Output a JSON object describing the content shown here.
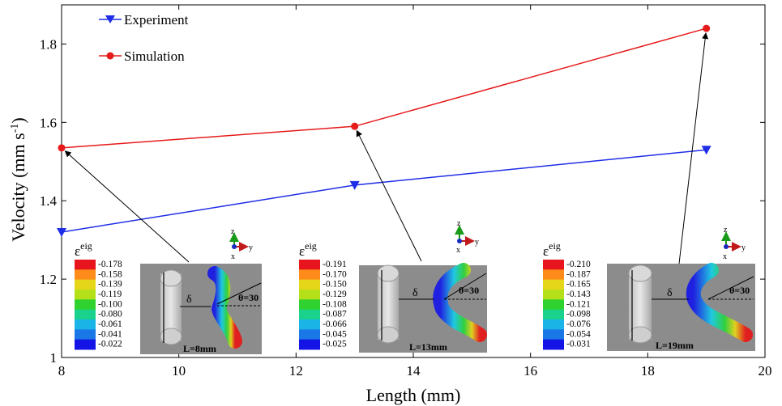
{
  "chart_data": {
    "type": "line",
    "xlabel": "Length (mm)",
    "ylabel": {
      "main": "Velocity (mm s",
      "sup": "-1",
      "close": ")"
    },
    "xlim": [
      8,
      20
    ],
    "ylim": [
      1.0,
      1.9
    ],
    "xticks": [
      "8",
      "10",
      "12",
      "14",
      "16",
      "18",
      "20"
    ],
    "yticks": [
      "1",
      "1.2",
      "1.4",
      "1.6",
      "1.8"
    ],
    "grid": false,
    "legend_position": "top-left",
    "series": [
      {
        "name": "Experiment",
        "color": "#1f2ee6",
        "marker": "triangle-down",
        "x": [
          8,
          13,
          19
        ],
        "y": [
          1.32,
          1.44,
          1.53
        ]
      },
      {
        "name": "Simulation",
        "color": "#e61a1a",
        "marker": "circle",
        "x": [
          8,
          13,
          19
        ],
        "y": [
          1.535,
          1.59,
          1.84
        ]
      }
    ],
    "insets": [
      {
        "epsilon_label": "ε",
        "epsilon_sup": "eig",
        "scale": [
          "-0.178",
          "-0.158",
          "-0.139",
          "-0.119",
          "-0.100",
          "-0.080",
          "-0.061",
          "-0.041",
          "-0.022"
        ],
        "length_label": "L=8mm",
        "delta_label": "δ",
        "theta_label": "θ=30",
        "axis_z": "z",
        "axis_y": "y",
        "axis_x": "x",
        "arrow_to_x": 8
      },
      {
        "epsilon_label": "ε",
        "epsilon_sup": "eig",
        "scale": [
          "-0.191",
          "-0.170",
          "-0.150",
          "-0.129",
          "-0.108",
          "-0.087",
          "-0.066",
          "-0.045",
          "-0.025"
        ],
        "length_label": "L=13mm",
        "delta_label": "δ",
        "theta_label": "θ=30",
        "axis_z": "z",
        "axis_y": "y",
        "axis_x": "x",
        "arrow_to_x": 13
      },
      {
        "epsilon_label": "ε",
        "epsilon_sup": "eig",
        "scale": [
          "-0.210",
          "-0.187",
          "-0.165",
          "-0.143",
          "-0.121",
          "-0.098",
          "-0.076",
          "-0.054",
          "-0.031"
        ],
        "length_label": "L=19mm",
        "delta_label": "δ",
        "theta_label": "θ=30",
        "axis_z": "z",
        "axis_y": "y",
        "axis_x": "x",
        "arrow_to_x": 19
      }
    ],
    "colorbar_colors": [
      "#e8141e",
      "#ff8c1a",
      "#e6d619",
      "#b4e01a",
      "#2fd22f",
      "#1ad28c",
      "#1ab4e6",
      "#1a78e6",
      "#1414e6"
    ]
  }
}
